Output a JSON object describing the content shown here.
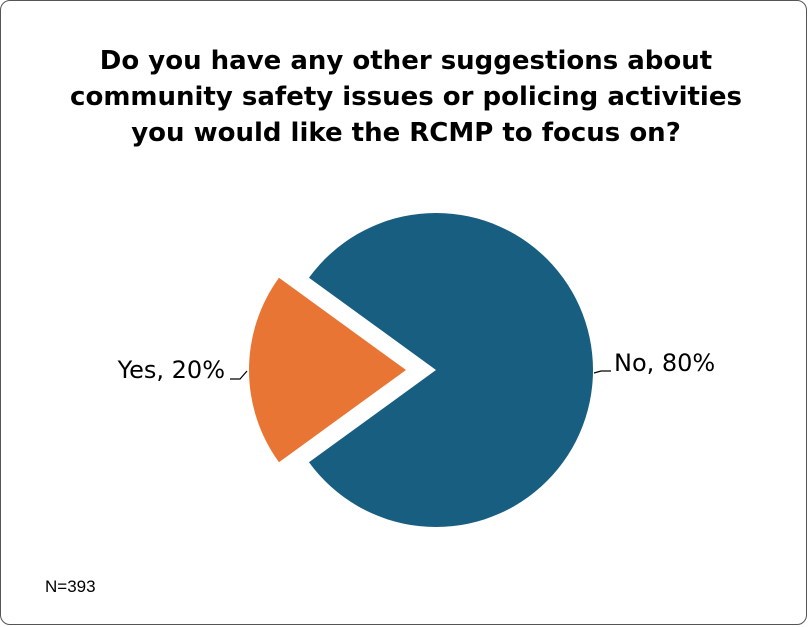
{
  "chart_data": {
    "type": "pie",
    "title": [
      "Do you have any other suggestions about",
      "community safety issues or policing activities",
      "you would like the RCMP to focus on?"
    ],
    "slices": [
      {
        "label": "No",
        "value": 80,
        "display": "No, 80%",
        "color": "#175E80"
      },
      {
        "label": "Yes",
        "value": 20,
        "display": "Yes, 20%",
        "color": "#E87533",
        "exploded": true
      }
    ],
    "legend": "none",
    "footnote": "N=393"
  }
}
